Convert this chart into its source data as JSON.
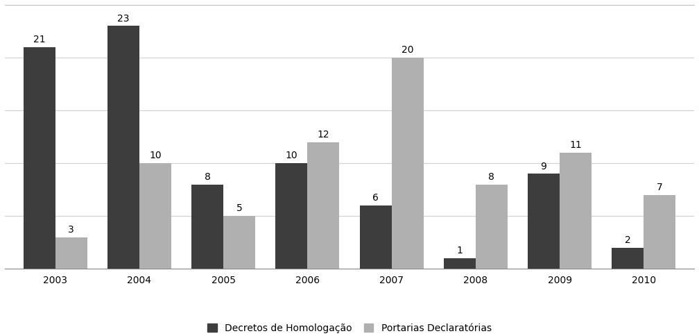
{
  "years": [
    "2003",
    "2004",
    "2005",
    "2006",
    "2007",
    "2008",
    "2009",
    "2010"
  ],
  "decretos": [
    21,
    23,
    8,
    10,
    6,
    1,
    9,
    2
  ],
  "portarias": [
    3,
    10,
    5,
    12,
    20,
    8,
    11,
    7
  ],
  "color_decretos": "#3d3d3d",
  "color_portarias": "#b0b0b0",
  "bar_width": 0.38,
  "ylim": [
    0,
    25
  ],
  "yticks": [
    0,
    5,
    10,
    15,
    20,
    25
  ],
  "legend_label_decretos": "Decretos de Homologação",
  "legend_label_portarias": "Portarias Declaratórias",
  "background_color": "#ffffff",
  "label_fontsize": 10,
  "tick_fontsize": 10,
  "legend_fontsize": 10,
  "grid_color": "#d0d0d0",
  "top_border_color": "#c0c0c0"
}
